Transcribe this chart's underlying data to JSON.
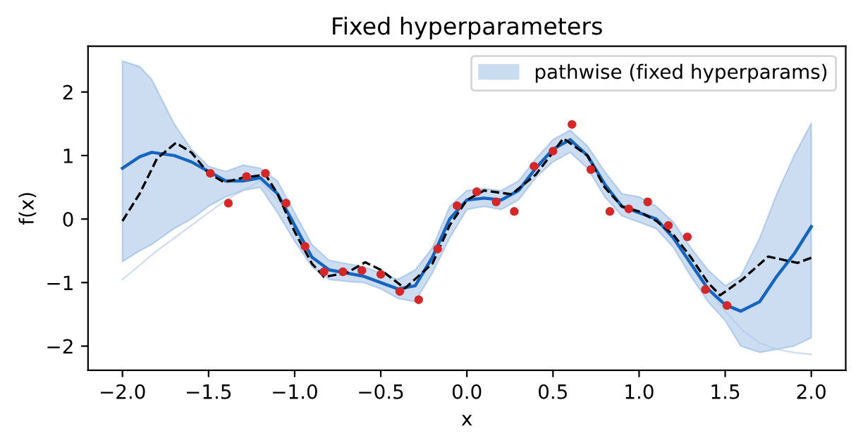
{
  "chart_data": {
    "type": "line",
    "title": "Fixed hyperparameters",
    "xlabel": "x",
    "ylabel": "f(x)",
    "xlim": [
      -2.2,
      2.2
    ],
    "ylim": [
      -2.38,
      2.72
    ],
    "xticks": [
      {
        "value": -2,
        "label": "−2.0"
      },
      {
        "value": -1.5,
        "label": "−1.5"
      },
      {
        "value": -1,
        "label": "−1.0"
      },
      {
        "value": -0.5,
        "label": "−0.5"
      },
      {
        "value": 0,
        "label": "0.0"
      },
      {
        "value": 0.5,
        "label": "0.5"
      },
      {
        "value": 1,
        "label": "1.0"
      },
      {
        "value": 1.5,
        "label": "1.5"
      },
      {
        "value": 2,
        "label": "2.0"
      }
    ],
    "yticks": [
      {
        "value": -2,
        "label": "−2"
      },
      {
        "value": -1,
        "label": "−1"
      },
      0,
      1,
      2
    ],
    "grid": false,
    "legend": "top right",
    "series": [
      {
        "color": "#aec8ea",
        "x": [
          -2.0,
          -1.8,
          -1.6,
          -1.4,
          -1.2,
          -1.0
        ],
        "values": [
          -0.95,
          -0.5,
          -0.1,
          0.3,
          0.6,
          0.0
        ]
      },
      {
        "color": "#aec8ea",
        "x": [
          1.3,
          1.4,
          1.5,
          1.6,
          1.7,
          1.8,
          1.9,
          2.0
        ],
        "values": [
          -0.7,
          -1.1,
          -1.45,
          -1.75,
          -1.95,
          -2.05,
          -2.1,
          -2.13
        ]
      },
      {
        "name": "pathwise (fixed hyperparams)",
        "color": "#1565c0",
        "x": [
          -2.0,
          -1.9,
          -1.83,
          -1.7,
          -1.6,
          -1.5,
          -1.4,
          -1.3,
          -1.2,
          -1.1,
          -1.0,
          -0.9,
          -0.8,
          -0.7,
          -0.6,
          -0.5,
          -0.4,
          -0.3,
          -0.2,
          -0.1,
          0.0,
          0.1,
          0.2,
          0.3,
          0.4,
          0.5,
          0.6,
          0.7,
          0.8,
          0.9,
          1.0,
          1.1,
          1.2,
          1.3,
          1.4,
          1.5,
          1.59,
          1.7,
          1.8,
          1.9,
          2.0
        ],
        "values": [
          0.8,
          0.98,
          1.05,
          1.0,
          0.9,
          0.75,
          0.6,
          0.6,
          0.65,
          0.4,
          -0.1,
          -0.6,
          -0.8,
          -0.85,
          -0.9,
          -1.0,
          -1.1,
          -1.05,
          -0.6,
          0.0,
          0.3,
          0.33,
          0.3,
          0.45,
          0.8,
          1.1,
          1.25,
          1.0,
          0.55,
          0.2,
          0.1,
          0.0,
          -0.3,
          -0.7,
          -1.1,
          -1.35,
          -1.45,
          -1.3,
          -0.9,
          -0.55,
          -0.12
        ],
        "lower": [
          -0.67,
          -0.5,
          -0.4,
          -0.15,
          0.0,
          0.2,
          0.35,
          0.45,
          0.5,
          0.1,
          -0.35,
          -0.75,
          -0.95,
          -0.98,
          -1.0,
          -1.1,
          -1.25,
          -1.3,
          -0.85,
          -0.3,
          0.15,
          0.2,
          0.15,
          0.3,
          0.65,
          0.9,
          1.05,
          0.8,
          0.35,
          0.05,
          -0.05,
          -0.15,
          -0.45,
          -0.9,
          -1.3,
          -1.6,
          -2.0,
          -2.1,
          -2.05,
          -2.0,
          -1.87
        ],
        "upper": [
          2.49,
          2.4,
          2.2,
          1.5,
          1.1,
          0.83,
          0.75,
          0.85,
          0.8,
          0.6,
          0.1,
          -0.4,
          -0.65,
          -0.7,
          -0.75,
          -0.85,
          -0.95,
          -0.8,
          -0.45,
          0.2,
          0.45,
          0.48,
          0.45,
          0.6,
          0.95,
          1.25,
          1.4,
          1.15,
          0.75,
          0.4,
          0.35,
          0.2,
          -0.05,
          -0.45,
          -0.8,
          -1.05,
          -0.9,
          -0.3,
          0.4,
          1.0,
          1.51
        ]
      },
      {
        "color": "#000000",
        "line_style": "dashed",
        "x": [
          -2.0,
          -1.9,
          -1.8,
          -1.69,
          -1.6,
          -1.5,
          -1.41,
          -1.3,
          -1.17,
          -1.1,
          -1.0,
          -0.9,
          -0.83,
          -0.7,
          -0.59,
          -0.5,
          -0.36,
          -0.2,
          -0.1,
          0.0,
          0.1,
          0.26,
          0.4,
          0.5,
          0.56,
          0.7,
          0.8,
          0.9,
          1.0,
          1.1,
          1.2,
          1.3,
          1.4,
          1.47,
          1.6,
          1.75,
          1.92,
          2.0
        ],
        "values": [
          -0.03,
          0.4,
          0.95,
          1.2,
          1.05,
          0.72,
          0.58,
          0.65,
          0.7,
          0.4,
          -0.2,
          -0.7,
          -0.91,
          -0.85,
          -0.68,
          -0.8,
          -1.09,
          -0.7,
          -0.1,
          0.3,
          0.45,
          0.39,
          0.7,
          1.05,
          1.27,
          1.0,
          0.5,
          0.2,
          0.12,
          -0.03,
          -0.25,
          -0.6,
          -1.0,
          -1.2,
          -0.95,
          -0.59,
          -0.69,
          -0.61
        ]
      },
      {
        "type": "scatter",
        "color": "#d62728",
        "x": [
          -1.49,
          -1.385,
          -1.28,
          -1.17,
          -1.05,
          -0.94,
          -0.83,
          -0.72,
          -0.61,
          -0.5,
          -0.39,
          -0.28,
          -0.17,
          -0.057,
          0.057,
          0.17,
          0.275,
          0.39,
          0.5,
          0.61,
          0.72,
          0.83,
          0.94,
          1.05,
          1.17,
          1.28,
          1.385,
          1.51
        ],
        "values": [
          0.72,
          0.25,
          0.67,
          0.72,
          0.25,
          -0.43,
          -0.83,
          -0.83,
          -0.81,
          -0.87,
          -1.14,
          -1.27,
          -0.47,
          0.21,
          0.43,
          0.27,
          0.12,
          0.83,
          1.07,
          1.49,
          0.78,
          0.12,
          0.16,
          0.27,
          -0.1,
          -0.28,
          -1.11,
          -1.36
        ]
      }
    ]
  }
}
